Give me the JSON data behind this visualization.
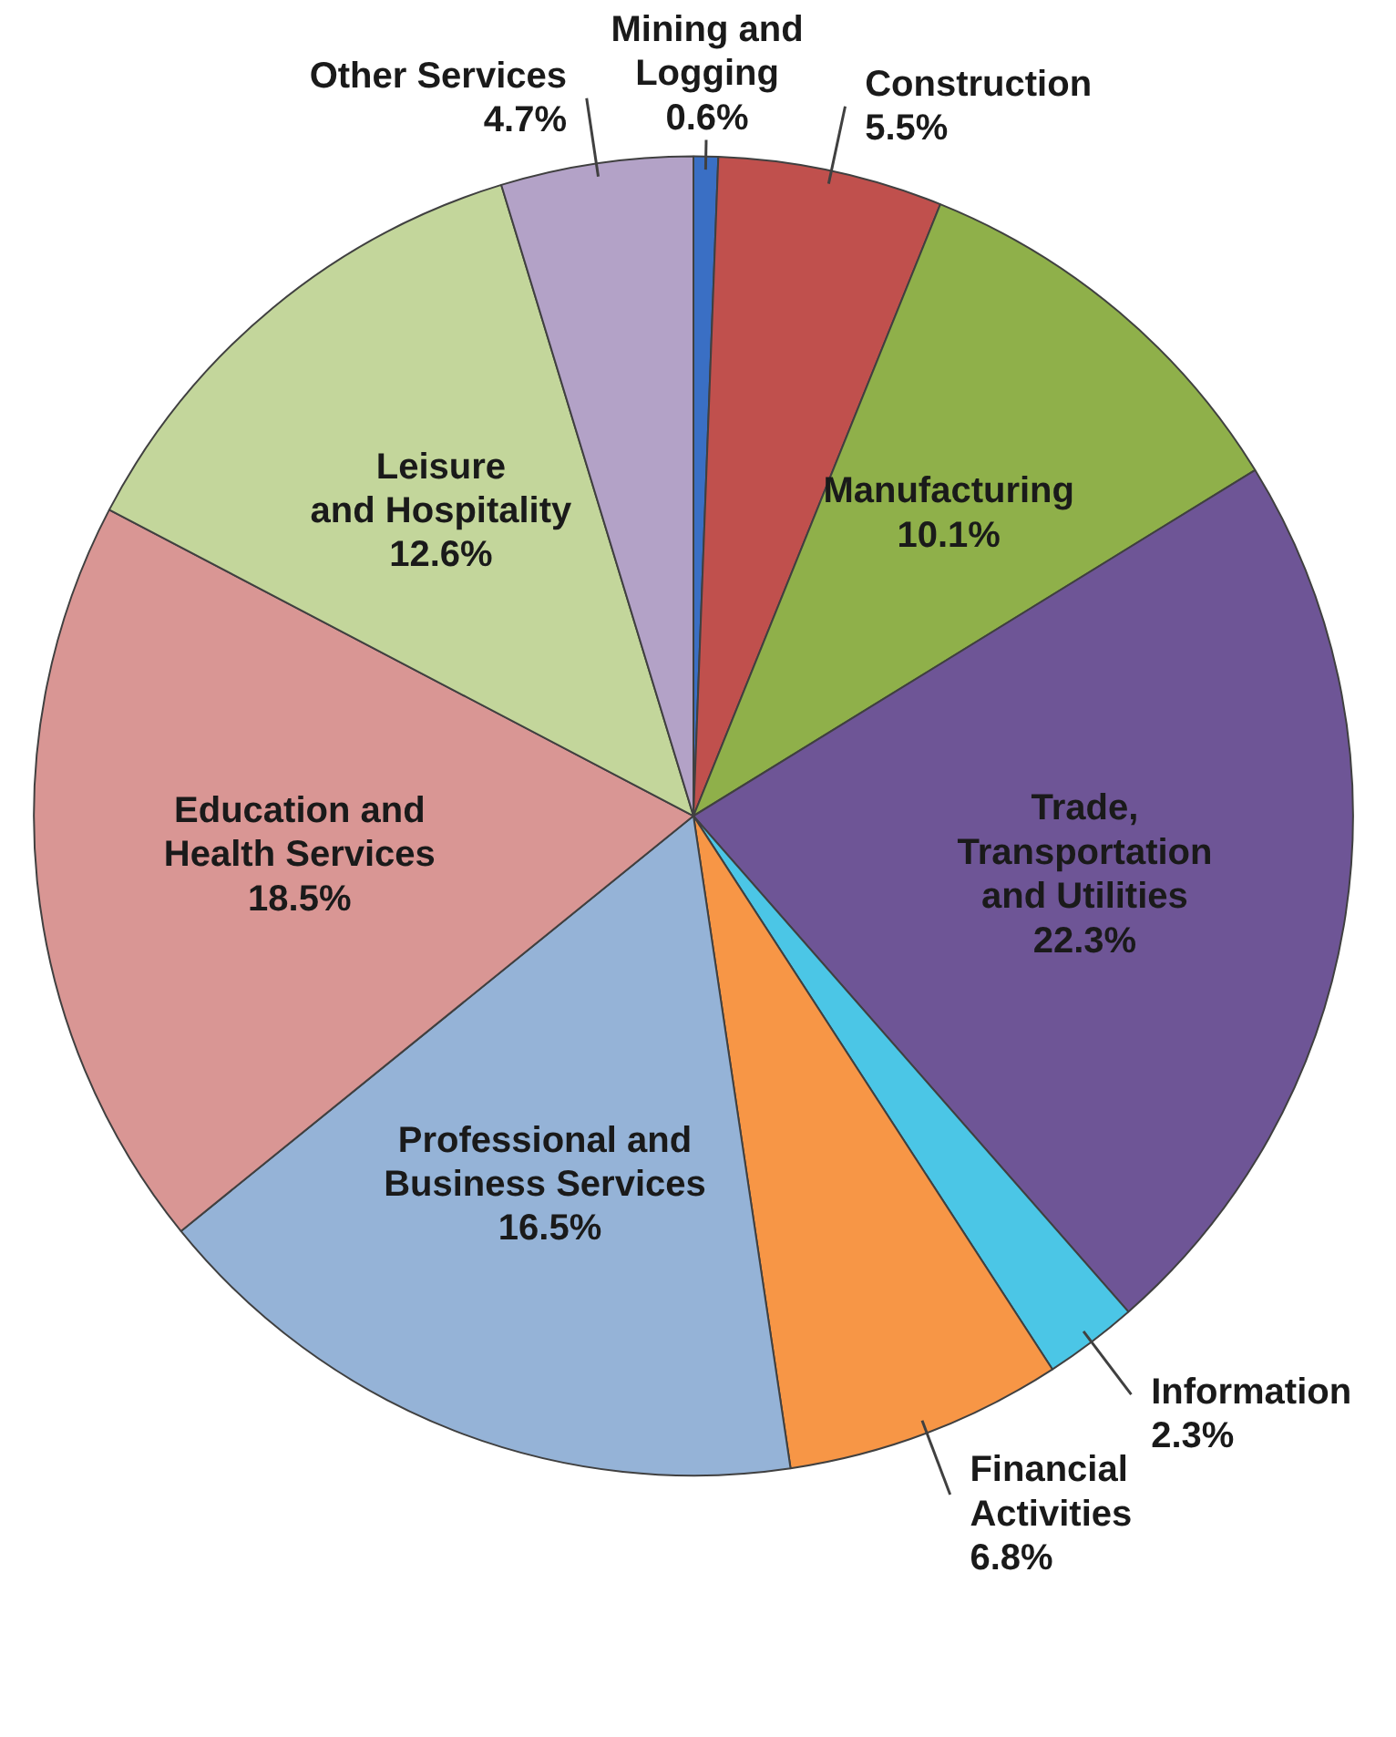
{
  "chart_data": {
    "type": "pie",
    "categories": [
      "Mining and\nLogging",
      "Construction",
      "Manufacturing",
      "Trade,\nTransportation\nand Utilities",
      "Information",
      "Financial\nActivities",
      "Professional  and\nBusiness  Services",
      "Education and\nHealth Services",
      "Leisure\nand Hospitality",
      "Other Services"
    ],
    "values": [
      0.6,
      5.5,
      10.1,
      22.3,
      2.3,
      6.8,
      16.5,
      18.5,
      12.6,
      4.7
    ],
    "value_labels": [
      "0.6%",
      "5.5%",
      "10.1%",
      "22.3%",
      "2.3%",
      "6.8%",
      "16.5%",
      "18.5%",
      "12.6%",
      "4.7%"
    ],
    "colors": [
      "#3a6fc4",
      "#c0504d",
      "#8fb04a",
      "#6e5596",
      "#4bc6e6",
      "#f79646",
      "#95b3d7",
      "#d99694",
      "#c3d69b",
      "#b3a2c7"
    ]
  }
}
